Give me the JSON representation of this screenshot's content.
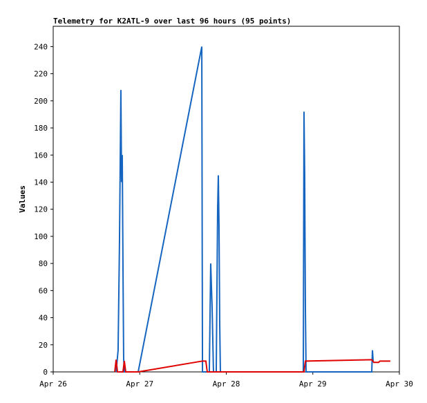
{
  "chart_data": {
    "type": "line",
    "title": "Telemetry for K2ATL-9 over last 96 hours (95 points)",
    "ylabel": "Values",
    "xlim": [
      0,
      4
    ],
    "xticks": [
      {
        "value": 0,
        "label": "Apr 26"
      },
      {
        "value": 1,
        "label": "Apr 27"
      },
      {
        "value": 2,
        "label": "Apr 28"
      },
      {
        "value": 3,
        "label": "Apr 29"
      },
      {
        "value": 4,
        "label": "Apr 30"
      }
    ],
    "ylim": [
      0,
      255
    ],
    "yticks": [
      0,
      20,
      40,
      60,
      80,
      100,
      120,
      140,
      160,
      180,
      200,
      220,
      240
    ],
    "grid": false,
    "series": [
      {
        "color": "#1565c0",
        "x": [
          0.727,
          0.75,
          0.766,
          0.782,
          0.79,
          0.798,
          0.806,
          0.814,
          0.822,
          0.982,
          1.717,
          1.725,
          1.804,
          1.82,
          1.836,
          1.852,
          1.884,
          1.9,
          1.908,
          1.916,
          1.924,
          1.932,
          2.89,
          2.898,
          2.906,
          2.914,
          2.922,
          3.681,
          3.689,
          3.697
        ],
        "values": [
          0,
          16,
          96,
          208,
          140,
          160,
          80,
          10,
          0,
          0,
          240,
          0,
          0,
          80,
          48,
          0,
          0,
          120,
          145,
          108,
          36,
          0,
          0,
          192,
          145,
          48,
          0,
          0,
          16,
          8
        ]
      },
      {
        "color": "#e00000",
        "x": [
          0.711,
          0.727,
          0.743,
          0.806,
          0.822,
          0.838,
          0.982,
          1.725,
          1.764,
          1.78,
          2.898,
          2.914,
          3.297,
          3.681,
          3.705,
          3.76,
          3.776,
          3.896
        ],
        "values": [
          0,
          9,
          0,
          0,
          8,
          0,
          0,
          8,
          8,
          0,
          0,
          8,
          8.5,
          9,
          7,
          7,
          8,
          8
        ]
      }
    ]
  }
}
